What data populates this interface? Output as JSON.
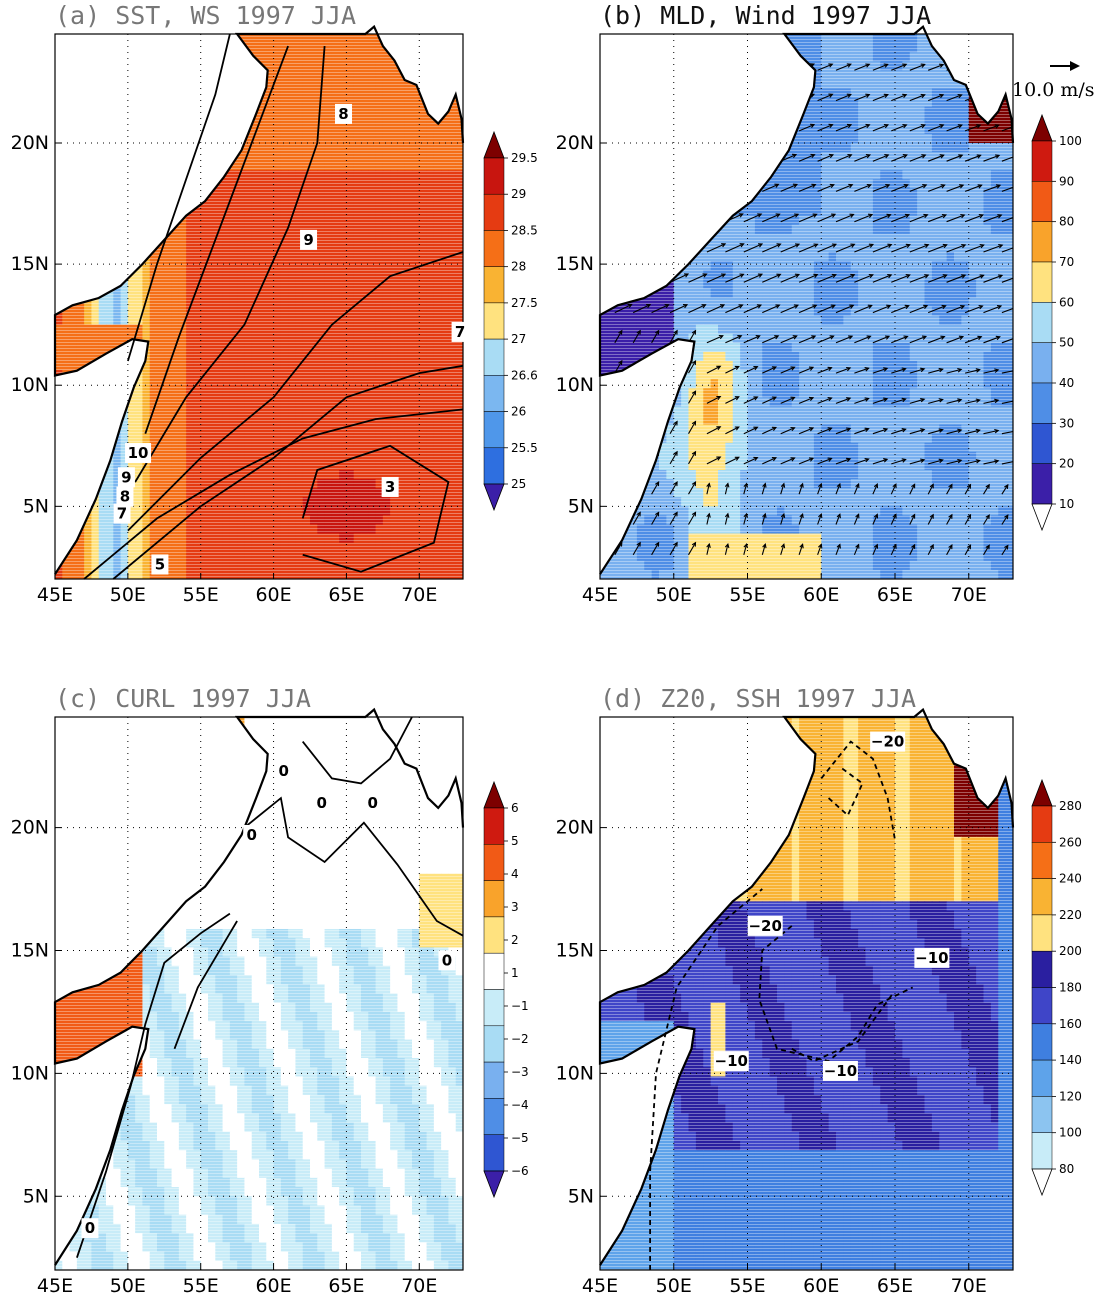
{
  "panels": [
    {
      "id": "a",
      "title": "(a) SST, WS 1997 JJA",
      "field": "sst",
      "colorbar": {
        "labels": [
          "25",
          "25.5",
          "26",
          "26.6",
          "27",
          "27.5",
          "28",
          "28.5",
          "29",
          "29.5"
        ],
        "colors": [
          "#3b1fa8",
          "#2e6fe0",
          "#4f97ea",
          "#7bb7f0",
          "#a9dcf4",
          "#ffe27f",
          "#f9b333",
          "#f56f17",
          "#e53b12",
          "#c8150f",
          "#7d0000"
        ],
        "arrows": "both"
      },
      "contour_labels": [
        "8",
        "9",
        "7",
        "10",
        "9",
        "8",
        "7",
        "5",
        "3"
      ]
    },
    {
      "id": "b",
      "title": "(b) MLD, Wind 1997 JJA",
      "field": "mld",
      "colorbar": {
        "labels": [
          "10",
          "20",
          "30",
          "40",
          "50",
          "60",
          "70",
          "80",
          "90",
          "100"
        ],
        "colors": [
          "#ffffff",
          "#3b1fa8",
          "#2f56d2",
          "#4f8ee6",
          "#79b0ef",
          "#a9dcf4",
          "#ffe27f",
          "#f9a32b",
          "#f15a16",
          "#cf1a10",
          "#7d0000"
        ],
        "arrows": "both"
      },
      "vector_reference": "10.0 m/s"
    },
    {
      "id": "c",
      "title": "(c) CURL 1997 JJA",
      "field": "curl",
      "colorbar": {
        "labels": [
          "−6",
          "−5",
          "−4",
          "−3",
          "−2",
          "−1",
          "1",
          "2",
          "3",
          "4",
          "5",
          "6"
        ],
        "colors": [
          "#3b1fa8",
          "#2f56d2",
          "#4f8ee6",
          "#79b0ef",
          "#a9dcf4",
          "#c8ecf8",
          "#ffffff",
          "#ffe27f",
          "#f9a32b",
          "#f15a16",
          "#cf1a10",
          "#7d0000"
        ],
        "arrows": "both"
      },
      "contour_labels": [
        "0",
        "0",
        "0",
        "0",
        "0",
        "0"
      ]
    },
    {
      "id": "d",
      "title": "(d) Z20, SSH 1997 JJA",
      "field": "z20",
      "colorbar": {
        "labels": [
          "80",
          "100",
          "120",
          "140",
          "160",
          "180",
          "200",
          "220",
          "240",
          "260",
          "280"
        ],
        "colors": [
          "#ffffff",
          "#c8ecf8",
          "#8cc4f0",
          "#5ea3ea",
          "#3f7fe0",
          "#3f45c8",
          "#2a1fa0",
          "#ffe27f",
          "#f9b333",
          "#f56f17",
          "#e53b12",
          "#7d0000"
        ],
        "arrows": "both"
      },
      "contour_labels": [
        "−20",
        "−20",
        "−10",
        "−10",
        "−10"
      ]
    }
  ],
  "axes": {
    "lon_ticks": [
      "45E",
      "50E",
      "55E",
      "60E",
      "65E",
      "70E"
    ],
    "lat_ticks": [
      "5N",
      "10N",
      "15N",
      "20N"
    ],
    "lon_range": [
      45,
      73
    ],
    "lat_range": [
      2,
      24.5
    ]
  },
  "colors": {
    "land": "#ffffff",
    "coast": "#000000",
    "title_gray": "#777777"
  }
}
